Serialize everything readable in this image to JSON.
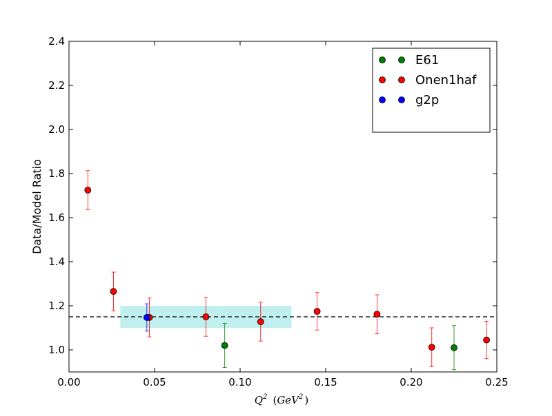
{
  "chart_data": {
    "type": "scatter",
    "xlabel_main": "Q",
    "xlabel_sup": "2",
    "xlabel_unit_open": "(",
    "xlabel_unit": "GeV",
    "xlabel_unit_sup": "2",
    "xlabel_unit_close": ")",
    "ylabel": "Data/Model Ratio",
    "xlim": [
      0.0,
      0.25
    ],
    "ylim": [
      0.9,
      2.4
    ],
    "xticks": [
      "0.00",
      "0.05",
      "0.10",
      "0.15",
      "0.20",
      "0.25"
    ],
    "yticks": [
      "1.0",
      "1.2",
      "1.4",
      "1.6",
      "1.8",
      "2.0",
      "2.2",
      "2.4"
    ],
    "grid": false,
    "legend_position": "top-right",
    "reference_line": {
      "y": 1.15,
      "style": "dashed",
      "color": "#000000"
    },
    "band": {
      "x": [
        0.03,
        0.13
      ],
      "y": [
        1.1,
        1.2
      ],
      "color": "#7fdfdf"
    },
    "series": [
      {
        "name": "E61",
        "color": "#008000",
        "points": [
          {
            "x": 0.091,
            "y": 1.02,
            "err": 0.1
          },
          {
            "x": 0.225,
            "y": 1.01,
            "err": 0.1
          }
        ]
      },
      {
        "name": "Onen1haf",
        "color": "#ff0000",
        "points": [
          {
            "x": 0.011,
            "y": 1.725,
            "err": 0.088
          },
          {
            "x": 0.026,
            "y": 1.265,
            "err": 0.088
          },
          {
            "x": 0.047,
            "y": 1.147,
            "err": 0.088
          },
          {
            "x": 0.08,
            "y": 1.15,
            "err": 0.088
          },
          {
            "x": 0.112,
            "y": 1.128,
            "err": 0.088
          },
          {
            "x": 0.145,
            "y": 1.175,
            "err": 0.085
          },
          {
            "x": 0.18,
            "y": 1.162,
            "err": 0.088
          },
          {
            "x": 0.212,
            "y": 1.012,
            "err": 0.088
          },
          {
            "x": 0.244,
            "y": 1.045,
            "err": 0.085
          }
        ]
      },
      {
        "name": "g2p",
        "color": "#0000ff",
        "points": [
          {
            "x": 0.0455,
            "y": 1.147,
            "err": 0.062
          }
        ]
      }
    ]
  }
}
